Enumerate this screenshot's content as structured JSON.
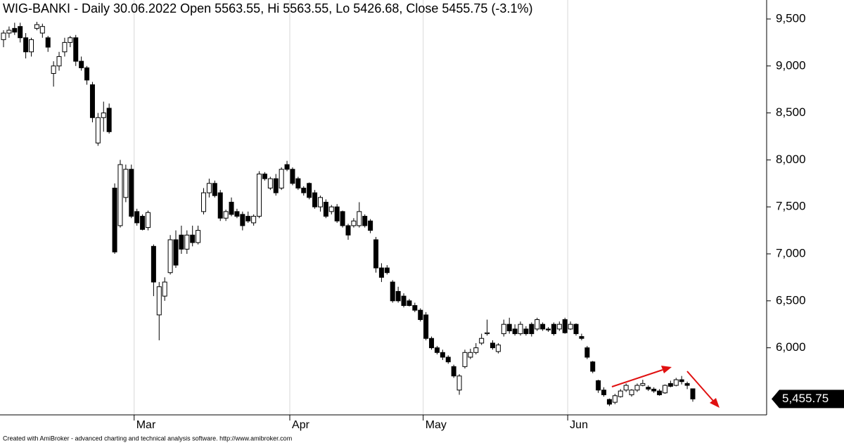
{
  "chart_data": {
    "type": "candlestick",
    "title": "WIG-BANKI - Daily 30.06.2022 Open 5563.55, Hi 5563.55, Lo 5426.68, Close 5455.75 (-3.1%)",
    "footer": "Created with AmiBroker - advanced charting and technical analysis software. http://www.amibroker.com",
    "ylim": [
      5286,
      9702
    ],
    "yticks": [
      {
        "value": 6000,
        "label": "6,000"
      },
      {
        "value": 6500,
        "label": "6,500"
      },
      {
        "value": 7000,
        "label": "7,000"
      },
      {
        "value": 7500,
        "label": "7,500"
      },
      {
        "value": 8000,
        "label": "8,000"
      },
      {
        "value": 8500,
        "label": "8,500"
      },
      {
        "value": 9000,
        "label": "9,000"
      },
      {
        "value": 9500,
        "label": "9,500"
      }
    ],
    "last_value_label": "5,455.75",
    "up_color": "#ffffff",
    "down_color": "#000000",
    "categories": [
      null,
      null,
      null,
      null,
      null,
      null,
      null,
      null,
      null,
      null,
      null,
      null,
      null,
      null,
      null,
      null,
      null,
      null,
      null,
      null,
      null,
      null,
      null,
      null,
      "Mar",
      null,
      null,
      null,
      null,
      null,
      null,
      null,
      null,
      null,
      null,
      null,
      null,
      null,
      null,
      null,
      null,
      null,
      null,
      null,
      null,
      null,
      null,
      null,
      null,
      null,
      null,
      null,
      "Apr",
      null,
      null,
      null,
      null,
      null,
      null,
      null,
      null,
      null,
      null,
      null,
      null,
      null,
      null,
      null,
      null,
      null,
      null,
      null,
      null,
      null,
      null,
      null,
      "May",
      null,
      null,
      null,
      null,
      null,
      null,
      null,
      null,
      null,
      null,
      null,
      null,
      null,
      null,
      null,
      null,
      null,
      null,
      null,
      null,
      null,
      null,
      null,
      null,
      null,
      "Jun",
      null,
      null,
      null,
      null,
      null,
      null,
      null,
      null,
      null,
      null,
      null,
      null,
      null,
      null,
      null,
      null,
      null,
      null,
      null,
      null,
      null,
      null
    ],
    "ohlc": [
      [
        9280,
        9380,
        9200,
        9350
      ],
      [
        9350,
        9420,
        9300,
        9380
      ],
      [
        9400,
        9460,
        9330,
        9360
      ],
      [
        9420,
        9460,
        9250,
        9300
      ],
      [
        9300,
        9350,
        9080,
        9150
      ],
      [
        9150,
        9300,
        9100,
        9280
      ],
      [
        9400,
        9470,
        9380,
        9440
      ],
      [
        9350,
        9450,
        9300,
        9420
      ],
      [
        9300,
        9320,
        9150,
        9200
      ],
      [
        8920,
        9050,
        8780,
        9000
      ],
      [
        9000,
        9150,
        8950,
        9100
      ],
      [
        9150,
        9300,
        9100,
        9250
      ],
      [
        9250,
        9320,
        9200,
        9300
      ],
      [
        9300,
        9330,
        9000,
        9050
      ],
      [
        9050,
        9100,
        8950,
        8980
      ],
      [
        8980,
        9000,
        8800,
        8850
      ],
      [
        8800,
        8830,
        8400,
        8450
      ],
      [
        8180,
        8500,
        8150,
        8450
      ],
      [
        8450,
        8620,
        8300,
        8500
      ],
      [
        8550,
        8600,
        8280,
        8300
      ],
      [
        7700,
        7750,
        7000,
        7020
      ],
      [
        7300,
        8000,
        7280,
        7950
      ],
      [
        7600,
        7950,
        7550,
        7900
      ],
      [
        7900,
        7950,
        7380,
        7400
      ],
      [
        7450,
        7480,
        7300,
        7330
      ],
      [
        7400,
        7420,
        7250,
        7260
      ],
      [
        7280,
        7460,
        7250,
        7440
      ],
      [
        7080,
        7100,
        6550,
        6700
      ],
      [
        6350,
        6700,
        6080,
        6650
      ],
      [
        6550,
        6750,
        6500,
        6700
      ],
      [
        6800,
        7200,
        6780,
        7150
      ],
      [
        7150,
        7250,
        6850,
        6880
      ],
      [
        7200,
        7300,
        7000,
        7050
      ],
      [
        7050,
        7250,
        7000,
        7200
      ],
      [
        7200,
        7300,
        7080,
        7120
      ],
      [
        7120,
        7300,
        7100,
        7250
      ],
      [
        7450,
        7700,
        7420,
        7650
      ],
      [
        7650,
        7800,
        7600,
        7750
      ],
      [
        7750,
        7780,
        7600,
        7620
      ],
      [
        7650,
        7680,
        7350,
        7380
      ],
      [
        7380,
        7470,
        7350,
        7450
      ],
      [
        7550,
        7600,
        7400,
        7420
      ],
      [
        7450,
        7480,
        7380,
        7400
      ],
      [
        7420,
        7450,
        7250,
        7300
      ],
      [
        7400,
        7450,
        7330,
        7350
      ],
      [
        7330,
        7420,
        7300,
        7400
      ],
      [
        7400,
        7880,
        7380,
        7850
      ],
      [
        7850,
        7870,
        7780,
        7800
      ],
      [
        7700,
        7820,
        7680,
        7800
      ],
      [
        7800,
        7850,
        7620,
        7650
      ],
      [
        7700,
        7920,
        7680,
        7900
      ],
      [
        7950,
        7990,
        7880,
        7900
      ],
      [
        7900,
        7920,
        7730,
        7750
      ],
      [
        7800,
        7820,
        7680,
        7700
      ],
      [
        7700,
        7720,
        7620,
        7650
      ],
      [
        7750,
        7760,
        7580,
        7600
      ],
      [
        7650,
        7680,
        7480,
        7500
      ],
      [
        7500,
        7620,
        7450,
        7600
      ],
      [
        7550,
        7580,
        7380,
        7400
      ],
      [
        7450,
        7520,
        7420,
        7500
      ],
      [
        7500,
        7530,
        7330,
        7350
      ],
      [
        7450,
        7460,
        7280,
        7300
      ],
      [
        7300,
        7320,
        7150,
        7200
      ],
      [
        7300,
        7380,
        7280,
        7350
      ],
      [
        7300,
        7550,
        7280,
        7450
      ],
      [
        7400,
        7420,
        7280,
        7300
      ],
      [
        7350,
        7370,
        7220,
        7250
      ],
      [
        7150,
        7180,
        6800,
        6850
      ],
      [
        6850,
        6900,
        6700,
        6750
      ],
      [
        6850,
        6880,
        6780,
        6800
      ],
      [
        6700,
        6720,
        6480,
        6500
      ],
      [
        6600,
        6650,
        6480,
        6500
      ],
      [
        6550,
        6580,
        6430,
        6450
      ],
      [
        6500,
        6520,
        6440,
        6450
      ],
      [
        6450,
        6480,
        6380,
        6400
      ],
      [
        6400,
        6420,
        6280,
        6300
      ],
      [
        6350,
        6380,
        6080,
        6100
      ],
      [
        6100,
        6120,
        5980,
        6000
      ],
      [
        6000,
        6020,
        5930,
        5950
      ],
      [
        5950,
        5980,
        5870,
        5900
      ],
      [
        5900,
        5920,
        5830,
        5850
      ],
      [
        5800,
        5820,
        5680,
        5700
      ],
      [
        5550,
        5720,
        5500,
        5700
      ],
      [
        5800,
        5980,
        5780,
        5950
      ],
      [
        5900,
        5990,
        5880,
        5950
      ],
      [
        5950,
        6050,
        5930,
        6000
      ],
      [
        6050,
        6150,
        6030,
        6100
      ],
      [
        6150,
        6300,
        6130,
        6160
      ],
      [
        6050,
        6080,
        5980,
        6000
      ],
      [
        5960,
        6050,
        5940,
        6030
      ],
      [
        6150,
        6300,
        6120,
        6250
      ],
      [
        6250,
        6320,
        6150,
        6180
      ],
      [
        6200,
        6250,
        6130,
        6150
      ],
      [
        6150,
        6280,
        6130,
        6250
      ],
      [
        6200,
        6230,
        6130,
        6150
      ],
      [
        6250,
        6270,
        6120,
        6150
      ],
      [
        6200,
        6320,
        6180,
        6300
      ],
      [
        6250,
        6270,
        6180,
        6200
      ],
      [
        6200,
        6220,
        6170,
        6190
      ],
      [
        6250,
        6270,
        6130,
        6150
      ],
      [
        6200,
        6280,
        6180,
        6250
      ],
      [
        6300,
        6320,
        6150,
        6160
      ],
      [
        6200,
        6280,
        6190,
        6250
      ],
      [
        6250,
        6260,
        6130,
        6150
      ],
      [
        6120,
        6150,
        6080,
        6100
      ],
      [
        6000,
        6020,
        5880,
        5900
      ],
      [
        5850,
        5860,
        5730,
        5750
      ],
      [
        5650,
        5660,
        5520,
        5550
      ],
      [
        5550,
        5580,
        5480,
        5500
      ],
      [
        5450,
        5460,
        5380,
        5400
      ],
      [
        5420,
        5510,
        5400,
        5490
      ],
      [
        5480,
        5560,
        5470,
        5540
      ],
      [
        5550,
        5620,
        5530,
        5600
      ],
      [
        5500,
        5560,
        5480,
        5550
      ],
      [
        5550,
        5620,
        5530,
        5600
      ],
      [
        5600,
        5660,
        5590,
        5620
      ],
      [
        5580,
        5600,
        5540,
        5560
      ],
      [
        5560,
        5580,
        5520,
        5540
      ],
      [
        5540,
        5560,
        5490,
        5500
      ],
      [
        5520,
        5610,
        5510,
        5600
      ],
      [
        5620,
        5650,
        5580,
        5590
      ],
      [
        5600,
        5680,
        5590,
        5660
      ],
      [
        5660,
        5700,
        5610,
        5640
      ],
      [
        5620,
        5640,
        5560,
        5600
      ],
      [
        5563.55,
        5563.55,
        5426.68,
        5455.75
      ]
    ]
  }
}
